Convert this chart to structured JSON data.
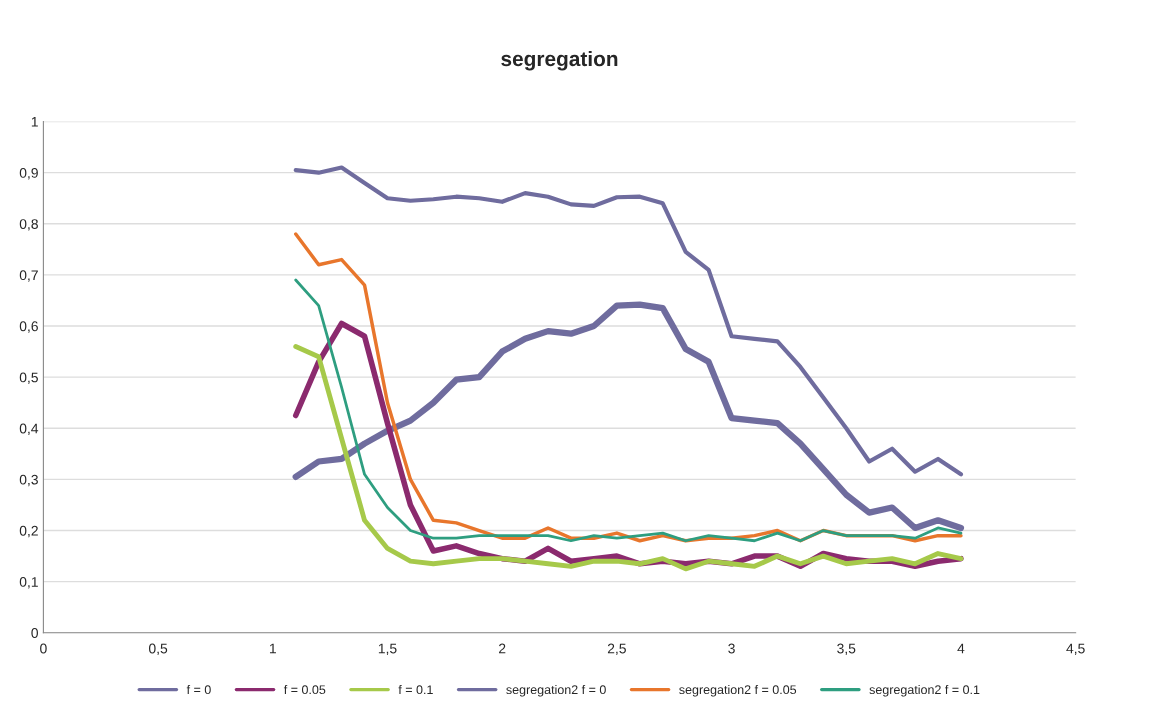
{
  "chart_data": {
    "type": "line",
    "title": "segregation",
    "x": [
      1.1,
      1.2,
      1.3,
      1.4,
      1.5,
      1.6,
      1.7,
      1.8,
      1.9,
      2.0,
      2.1,
      2.2,
      2.3,
      2.4,
      2.5,
      2.6,
      2.7,
      2.8,
      2.9,
      3.0,
      3.1,
      3.2,
      3.3,
      3.4,
      3.5,
      3.6,
      3.7,
      3.8,
      3.9,
      4.0
    ],
    "series": [
      {
        "name": "f = 0",
        "color": "#6f6c9e",
        "values": [
          0.305,
          0.335,
          0.34,
          0.37,
          0.395,
          0.415,
          0.45,
          0.495,
          0.5,
          0.55,
          0.575,
          0.59,
          0.585,
          0.6,
          0.64,
          0.642,
          0.635,
          0.555,
          0.53,
          0.42,
          0.415,
          0.41,
          0.37,
          0.32,
          0.27,
          0.235,
          0.245,
          0.205,
          0.22,
          0.205
        ]
      },
      {
        "name": "f = 0.05",
        "color": "#8b2a6e",
        "values": [
          0.425,
          0.53,
          0.605,
          0.58,
          0.41,
          0.25,
          0.16,
          0.17,
          0.155,
          0.145,
          0.14,
          0.165,
          0.14,
          0.145,
          0.15,
          0.135,
          0.14,
          0.135,
          0.14,
          0.135,
          0.15,
          0.15,
          0.13,
          0.155,
          0.145,
          0.14,
          0.14,
          0.13,
          0.14,
          0.145
        ]
      },
      {
        "name": "f = 0.1",
        "color": "#a6c94a",
        "values": [
          0.56,
          0.54,
          0.38,
          0.22,
          0.165,
          0.14,
          0.135,
          0.14,
          0.145,
          0.145,
          0.14,
          0.135,
          0.13,
          0.14,
          0.14,
          0.135,
          0.145,
          0.125,
          0.14,
          0.135,
          0.13,
          0.15,
          0.135,
          0.15,
          0.135,
          0.14,
          0.145,
          0.135,
          0.155,
          0.145
        ]
      },
      {
        "name": "segregation2 f = 0",
        "color": "#6f6c9e",
        "values": [
          0.905,
          0.9,
          0.91,
          0.88,
          0.85,
          0.845,
          0.848,
          0.853,
          0.85,
          0.843,
          0.86,
          0.853,
          0.838,
          0.835,
          0.852,
          0.853,
          0.84,
          0.745,
          0.71,
          0.58,
          0.575,
          0.57,
          0.52,
          0.46,
          0.4,
          0.335,
          0.36,
          0.315,
          0.34,
          0.31
        ]
      },
      {
        "name": "segregation2 f = 0.05",
        "color": "#e8762c",
        "values": [
          0.78,
          0.72,
          0.73,
          0.68,
          0.45,
          0.3,
          0.22,
          0.215,
          0.2,
          0.185,
          0.185,
          0.205,
          0.185,
          0.185,
          0.195,
          0.18,
          0.19,
          0.18,
          0.185,
          0.185,
          0.19,
          0.2,
          0.18,
          0.2,
          0.19,
          0.19,
          0.19,
          0.18,
          0.19,
          0.19
        ]
      },
      {
        "name": "segregation2 f = 0.1",
        "color": "#2e9e80",
        "values": [
          0.69,
          0.64,
          0.48,
          0.31,
          0.245,
          0.2,
          0.185,
          0.185,
          0.19,
          0.19,
          0.19,
          0.19,
          0.18,
          0.19,
          0.185,
          0.19,
          0.195,
          0.18,
          0.19,
          0.185,
          0.18,
          0.195,
          0.18,
          0.2,
          0.19,
          0.19,
          0.19,
          0.185,
          0.205,
          0.195
        ]
      }
    ],
    "xlim": [
      0,
      4.5
    ],
    "xticks": [
      0,
      {
        "value": 0.5,
        "label": "0,5"
      },
      1,
      {
        "value": 1.5,
        "label": "1,5"
      },
      2,
      {
        "value": 2.5,
        "label": "2,5"
      },
      3,
      {
        "value": 3.5,
        "label": "3,5"
      },
      4,
      {
        "value": 4.5,
        "label": "4,5"
      }
    ],
    "ylim": [
      0,
      1
    ],
    "yticks": [
      0,
      {
        "value": 0.1,
        "label": "0,1"
      },
      {
        "value": 0.2,
        "label": "0,2"
      },
      {
        "value": 0.3,
        "label": "0,3"
      },
      {
        "value": 0.4,
        "label": "0,4"
      },
      {
        "value": 0.5,
        "label": "0,5"
      },
      {
        "value": 0.6,
        "label": "0,6"
      },
      {
        "value": 0.7,
        "label": "0,7"
      },
      {
        "value": 0.8,
        "label": "0,8"
      },
      {
        "value": 0.9,
        "label": "0,9"
      },
      1
    ],
    "grid": "y",
    "legend": "bottom",
    "marker": "none",
    "line_style": "solid"
  }
}
